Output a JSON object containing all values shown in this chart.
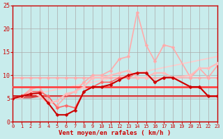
{
  "bg_color": "#c8ecec",
  "grid_color": "#aaaaaa",
  "xlabel": "Vent moyen/en rafales ( km/h )",
  "xlabel_color": "#cc0000",
  "tick_color": "#cc0000",
  "xlim": [
    0,
    23
  ],
  "ylim": [
    0,
    25
  ],
  "yticks": [
    0,
    5,
    10,
    15,
    20,
    25
  ],
  "xticks": [
    0,
    1,
    2,
    3,
    4,
    5,
    6,
    7,
    8,
    9,
    10,
    11,
    12,
    13,
    14,
    15,
    16,
    17,
    18,
    19,
    20,
    21,
    22,
    23
  ],
  "series": [
    {
      "x": [
        0,
        1,
        2,
        3,
        4,
        5,
        6,
        7,
        8,
        9,
        10,
        11,
        12,
        13,
        14,
        15,
        16,
        17,
        18,
        20,
        21,
        22,
        23
      ],
      "y": [
        9.5,
        9.5,
        9.5,
        9.5,
        9.5,
        9.5,
        9.5,
        9.5,
        9.5,
        9.5,
        9.5,
        9.5,
        9.5,
        9.5,
        9.5,
        9.5,
        9.5,
        9.5,
        9.5,
        9.5,
        9.5,
        9.5,
        9.5
      ],
      "color": "#ffaaaa",
      "lw": 1.2,
      "marker": "D",
      "ms": 2.5,
      "zorder": 2
    },
    {
      "x": [
        0,
        1,
        2,
        3,
        4,
        5,
        6,
        7,
        8,
        9,
        10,
        11,
        12,
        13,
        14,
        15,
        16,
        17,
        18,
        20,
        21,
        22,
        23
      ],
      "y": [
        5.5,
        5.5,
        5.5,
        5.5,
        5.5,
        5.5,
        5.5,
        5.5,
        5.5,
        5.5,
        5.5,
        5.5,
        5.5,
        5.5,
        5.5,
        5.5,
        5.5,
        5.5,
        5.5,
        5.5,
        5.5,
        5.5,
        5.5
      ],
      "color": "#cc0000",
      "lw": 1.2,
      "marker": null,
      "ms": 0,
      "zorder": 2
    },
    {
      "x": [
        0,
        1,
        2,
        3,
        4,
        5,
        6,
        7,
        8,
        9,
        10,
        11,
        12,
        13,
        14,
        15,
        16,
        17,
        18,
        20,
        21,
        22,
        23
      ],
      "y": [
        5.2,
        5.2,
        5.2,
        5.5,
        5.5,
        5.5,
        5.5,
        5.5,
        5.5,
        5.5,
        5.5,
        5.5,
        5.5,
        5.5,
        5.5,
        5.5,
        5.5,
        5.5,
        5.5,
        5.5,
        5.5,
        5.5,
        5.5
      ],
      "color": "#dd4444",
      "lw": 1.5,
      "marker": null,
      "ms": 0,
      "zorder": 3
    },
    {
      "x": [
        0,
        1,
        2,
        3,
        4,
        5,
        6,
        7,
        8,
        9,
        10,
        11,
        12,
        13,
        14,
        15,
        16,
        17,
        18,
        20,
        21,
        22,
        23
      ],
      "y": [
        7.5,
        7.5,
        7.5,
        7.5,
        7.5,
        7.5,
        7.5,
        7.5,
        7.5,
        7.5,
        7.5,
        7.5,
        7.5,
        7.5,
        7.5,
        7.5,
        7.5,
        7.5,
        7.5,
        7.5,
        7.5,
        7.5,
        7.5
      ],
      "color": "#ff4444",
      "lw": 2.0,
      "marker": null,
      "ms": 0,
      "zorder": 3
    },
    {
      "x": [
        0,
        1,
        2,
        3,
        4,
        5,
        6,
        7,
        8,
        9,
        10,
        11,
        12,
        13,
        14,
        15,
        16,
        17,
        18,
        20,
        21,
        22,
        23
      ],
      "y": [
        5.0,
        5.5,
        6.0,
        6.2,
        4.0,
        1.5,
        1.5,
        2.5,
        6.5,
        7.5,
        7.5,
        8.0,
        9.0,
        10.0,
        10.5,
        10.5,
        8.5,
        9.5,
        9.5,
        7.5,
        7.5,
        5.5,
        5.5
      ],
      "color": "#cc0000",
      "lw": 1.5,
      "marker": "D",
      "ms": 2.5,
      "zorder": 4
    },
    {
      "x": [
        0,
        1,
        2,
        3,
        4,
        5,
        6,
        7,
        8,
        9,
        10,
        11,
        12,
        13,
        14,
        15,
        16,
        17,
        18,
        20,
        21,
        22,
        23
      ],
      "y": [
        5.0,
        5.5,
        6.5,
        6.5,
        5.5,
        3.0,
        3.5,
        3.0,
        6.5,
        7.5,
        8.5,
        8.5,
        9.5,
        9.5,
        10.5,
        10.5,
        8.5,
        9.5,
        9.5,
        7.5,
        7.5,
        5.5,
        5.5
      ],
      "color": "#ff6666",
      "lw": 1.2,
      "marker": "D",
      "ms": 2.5,
      "zorder": 3
    },
    {
      "x": [
        0,
        1,
        2,
        3,
        4,
        5,
        6,
        7,
        8,
        9,
        10,
        11,
        12,
        13,
        14,
        15,
        16,
        17,
        18,
        20,
        21,
        22,
        23
      ],
      "y": [
        5.0,
        5.5,
        7.0,
        7.5,
        4.5,
        3.5,
        5.5,
        6.5,
        8.5,
        10.0,
        10.0,
        11.0,
        13.5,
        14.0,
        23.5,
        16.5,
        13.0,
        16.5,
        16.0,
        9.5,
        11.5,
        9.5,
        12.0
      ],
      "color": "#ffaaaa",
      "lw": 1.2,
      "marker": "D",
      "ms": 2.5,
      "zorder": 2
    },
    {
      "x": [
        0,
        1,
        2,
        3,
        4,
        5,
        6,
        7,
        8,
        9,
        10,
        11,
        12,
        13,
        14,
        15,
        16,
        17,
        18,
        20,
        21,
        22,
        23
      ],
      "y": [
        5.0,
        5.2,
        6.5,
        5.5,
        4.0,
        4.5,
        6.0,
        6.5,
        7.5,
        9.5,
        9.5,
        10.0,
        10.5,
        11.0,
        9.5,
        9.5,
        10.5,
        10.5,
        9.5,
        10.0,
        11.5,
        11.5,
        12.5
      ],
      "color": "#ffbbbb",
      "lw": 1.5,
      "marker": "D",
      "ms": 2.5,
      "zorder": 3
    },
    {
      "x": [
        0,
        23
      ],
      "y": [
        5.0,
        14.0
      ],
      "color": "#ffcccc",
      "lw": 1.2,
      "marker": null,
      "ms": 0,
      "zorder": 1
    }
  ],
  "arrow_color": "#cc0000"
}
